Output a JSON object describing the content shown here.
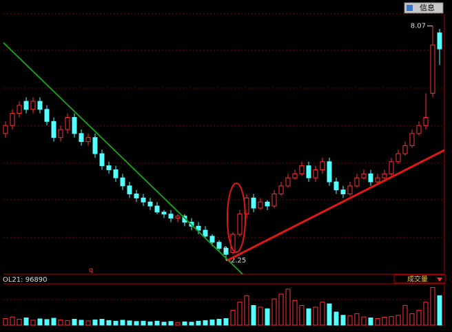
{
  "chart_data": {
    "type": "candlestick",
    "open": [
      5.4,
      5.6,
      5.9,
      6.2,
      6.0,
      6.2,
      6.0,
      5.7,
      5.3,
      5.5,
      5.8,
      5.4,
      5.2,
      5.3,
      4.9,
      4.6,
      4.5,
      4.3,
      4.1,
      3.9,
      3.8,
      3.7,
      3.6,
      3.45,
      3.4,
      3.3,
      3.35,
      3.2,
      3.1,
      3.0,
      2.85,
      2.7,
      2.55,
      2.45,
      2.9,
      3.4,
      3.8,
      3.55,
      3.7,
      3.6,
      3.9,
      4.1,
      4.3,
      4.4,
      4.6,
      4.3,
      4.5,
      4.7,
      4.2,
      4.0,
      3.9,
      4.1,
      4.3,
      4.4,
      4.2,
      4.3,
      4.4,
      4.7,
      4.9,
      5.1,
      5.4,
      5.6,
      6.4,
      7.9
    ],
    "high": [
      5.7,
      6.0,
      6.2,
      6.3,
      6.3,
      6.3,
      6.1,
      5.8,
      5.6,
      5.9,
      5.9,
      5.5,
      5.4,
      5.4,
      5.0,
      4.7,
      4.6,
      4.4,
      4.2,
      4.0,
      3.9,
      3.8,
      3.7,
      3.5,
      3.5,
      3.4,
      3.4,
      3.3,
      3.2,
      3.1,
      2.9,
      2.75,
      2.6,
      2.95,
      3.5,
      3.9,
      3.9,
      3.8,
      3.75,
      4.0,
      4.2,
      4.4,
      4.5,
      4.7,
      4.7,
      4.6,
      4.8,
      4.8,
      4.3,
      4.1,
      4.2,
      4.4,
      4.5,
      4.5,
      4.4,
      4.5,
      4.8,
      5.0,
      5.2,
      5.5,
      5.7,
      6.4,
      8.07,
      8.0
    ],
    "low": [
      5.3,
      5.5,
      5.8,
      5.9,
      5.9,
      5.9,
      5.6,
      5.2,
      5.2,
      5.4,
      5.3,
      5.1,
      5.1,
      4.8,
      4.5,
      4.4,
      4.2,
      4.0,
      3.8,
      3.7,
      3.6,
      3.5,
      3.4,
      3.3,
      3.2,
      3.2,
      3.1,
      3.0,
      2.9,
      2.8,
      2.6,
      2.5,
      2.25,
      2.4,
      2.85,
      3.3,
      3.45,
      3.5,
      3.5,
      3.55,
      3.85,
      4.05,
      4.25,
      4.35,
      4.2,
      4.2,
      4.4,
      4.1,
      3.9,
      3.8,
      3.85,
      4.05,
      4.25,
      4.1,
      4.15,
      4.25,
      4.35,
      4.65,
      4.85,
      5.05,
      5.35,
      5.5,
      6.3,
      7.1
    ],
    "close": [
      5.6,
      5.9,
      6.1,
      6.0,
      6.2,
      6.0,
      5.7,
      5.3,
      5.5,
      5.8,
      5.4,
      5.2,
      5.3,
      4.9,
      4.6,
      4.5,
      4.3,
      4.1,
      3.9,
      3.8,
      3.7,
      3.6,
      3.45,
      3.4,
      3.3,
      3.35,
      3.2,
      3.1,
      3.0,
      2.85,
      2.7,
      2.55,
      2.4,
      2.9,
      3.4,
      3.8,
      3.55,
      3.7,
      3.6,
      3.9,
      4.1,
      4.3,
      4.4,
      4.6,
      4.3,
      4.5,
      4.7,
      4.2,
      4.0,
      3.9,
      4.1,
      4.3,
      4.4,
      4.2,
      4.3,
      4.4,
      4.7,
      4.9,
      5.1,
      5.4,
      5.6,
      5.8,
      7.6,
      7.5
    ],
    "volume": [
      20000,
      25000,
      18000,
      22000,
      15000,
      19000,
      17000,
      21000,
      16000,
      14000,
      18000,
      15000,
      13000,
      16000,
      18000,
      14000,
      12000,
      15000,
      13000,
      11000,
      12000,
      10000,
      12000,
      9000,
      11000,
      8000,
      10000,
      9000,
      12000,
      14000,
      16000,
      18000,
      20000,
      45000,
      70000,
      90000,
      60000,
      55000,
      50000,
      80000,
      95000,
      110000,
      75000,
      60000,
      50000,
      55000,
      70000,
      65000,
      40000,
      30000,
      28000,
      35000,
      25000,
      22000,
      20000,
      24000,
      26000,
      30000,
      60000,
      35000,
      45000,
      70000,
      115000,
      90000
    ],
    "ylim": [
      1.96,
      8.63
    ],
    "volume_lim": [
      0,
      120000
    ],
    "up_color": "#ff3232",
    "down_color": "#54ffff",
    "high_label": 8.07,
    "low_label": 2.25,
    "circle_label": "0",
    "marker_label": "q",
    "volume_label": "OL21: 96890",
    "indicator_menu": "成交量",
    "info_button": "信息"
  }
}
